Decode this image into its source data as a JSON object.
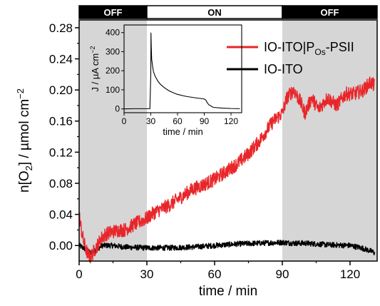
{
  "chart_data": [
    {
      "type": "line",
      "role": "main",
      "xlabel": "time / min",
      "ylabel": "n[O2] / µmol cm−2",
      "ylabel_parts": {
        "pre": "n[O",
        "sub": "2",
        "mid": "] / µmol cm",
        "sup": "−2"
      },
      "xlim": [
        0,
        132
      ],
      "ylim": [
        -0.02,
        0.29
      ],
      "xticks": [
        0,
        30,
        60,
        90,
        120
      ],
      "xtick_labels": [
        "0",
        "30",
        "60",
        "90",
        "120"
      ],
      "yticks": [
        0.0,
        0.04,
        0.08,
        0.12,
        0.16,
        0.2,
        0.24,
        0.28
      ],
      "ytick_labels": [
        "0.00",
        "0.04",
        "0.08",
        "0.12",
        "0.16",
        "0.20",
        "0.24",
        "0.28"
      ],
      "phases": [
        {
          "label": "OFF",
          "x": [
            0,
            30
          ],
          "shaded": true
        },
        {
          "label": "ON",
          "x": [
            30,
            90
          ],
          "shaded": false
        },
        {
          "label": "OFF",
          "x": [
            90,
            132
          ],
          "shaded": true
        }
      ],
      "legend": {
        "placement": "top-right"
      },
      "series": [
        {
          "name": "IO-ITO|POs-PSII",
          "name_parts": {
            "pre": "IO-ITO|P",
            "sub": "Os",
            "post": "-PSII"
          },
          "color": "#e8262a",
          "x": [
            0,
            1,
            2,
            3,
            4,
            5,
            6,
            8,
            10,
            12,
            15,
            18,
            20,
            25,
            30,
            32,
            35,
            40,
            45,
            50,
            55,
            60,
            65,
            70,
            75,
            80,
            83,
            86,
            90,
            92,
            95,
            98,
            100,
            103,
            106,
            110,
            114,
            118,
            122,
            126,
            129,
            131
          ],
          "y": [
            0.04,
            0.02,
            0.005,
            -0.005,
            -0.012,
            -0.015,
            -0.01,
            0.0,
            0.01,
            0.015,
            0.018,
            0.02,
            0.02,
            0.028,
            0.035,
            0.04,
            0.045,
            0.052,
            0.062,
            0.072,
            0.078,
            0.085,
            0.095,
            0.105,
            0.118,
            0.135,
            0.148,
            0.16,
            0.17,
            0.19,
            0.2,
            0.185,
            0.17,
            0.19,
            0.175,
            0.19,
            0.18,
            0.195,
            0.195,
            0.2,
            0.21,
            0.205
          ],
          "noise": 0.009
        },
        {
          "name": "IO-ITO",
          "color": "#000000",
          "x": [
            0,
            3,
            5,
            8,
            10,
            15,
            20,
            30,
            40,
            50,
            60,
            70,
            80,
            90,
            95,
            100,
            110,
            120,
            125,
            130,
            131
          ],
          "y": [
            0.0,
            -0.005,
            -0.01,
            -0.005,
            0.0,
            0.0,
            -0.002,
            -0.003,
            -0.003,
            -0.002,
            0.0,
            0.002,
            0.003,
            0.004,
            0.003,
            0.003,
            0.001,
            0.0,
            -0.003,
            -0.008,
            -0.01
          ],
          "noise": 0.0035
        }
      ]
    },
    {
      "type": "line",
      "role": "inset",
      "xlabel": "time / min",
      "ylabel": "J / µA cm−2",
      "ylabel_parts": {
        "pre": "J / µA cm",
        "sup": "−2"
      },
      "xlim": [
        0,
        132
      ],
      "ylim": [
        -20,
        440
      ],
      "xticks": [
        0,
        30,
        60,
        90,
        120
      ],
      "xtick_labels": [
        "0",
        "30",
        "60",
        "90",
        "120"
      ],
      "yticks": [
        0,
        100,
        200,
        300,
        400
      ],
      "ytick_labels": [
        "0",
        "100",
        "200",
        "300",
        "400"
      ],
      "series": [
        {
          "name": "",
          "color": "#000000",
          "x": [
            0,
            10,
            20,
            29,
            30,
            30.2,
            30.5,
            31,
            32,
            33,
            35,
            38,
            41,
            45,
            50,
            55,
            60,
            70,
            80,
            90,
            92,
            93,
            95,
            100,
            110,
            120,
            130
          ],
          "y": [
            0,
            1,
            1,
            1,
            180,
            400,
            330,
            260,
            225,
            195,
            170,
            145,
            128,
            112,
            96,
            85,
            76,
            65,
            58,
            52,
            45,
            35,
            22,
            8,
            4,
            2,
            1
          ],
          "noise": 0
        }
      ]
    }
  ]
}
